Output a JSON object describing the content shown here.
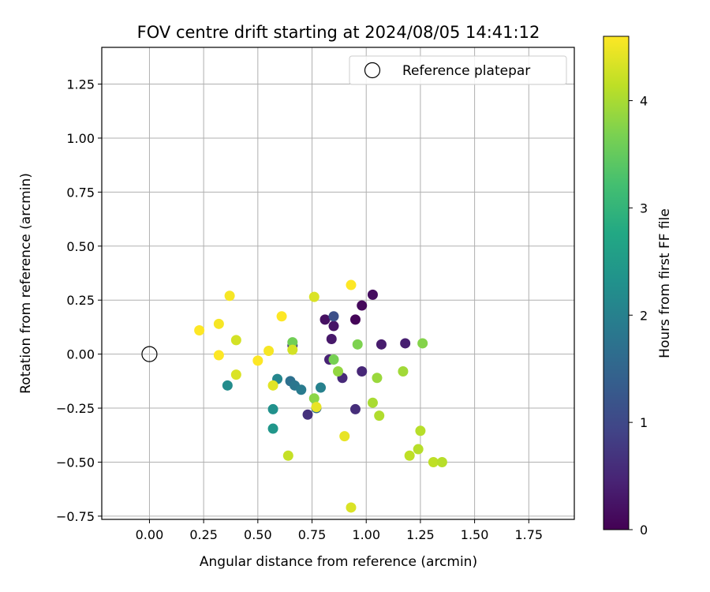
{
  "chart_data": {
    "type": "scatter",
    "title": "FOV centre drift starting at 2024/08/05 14:41:12",
    "xlabel": "Angular distance from reference (arcmin)",
    "ylabel": "Rotation from reference (arcmin)",
    "xlim": [
      -0.22,
      1.96
    ],
    "ylim": [
      -0.765,
      1.42
    ],
    "xticks": [
      0.0,
      0.25,
      0.5,
      0.75,
      1.0,
      1.25,
      1.5,
      1.75
    ],
    "xtick_labels": [
      "0.00",
      "0.25",
      "0.50",
      "0.75",
      "1.00",
      "1.25",
      "1.50",
      "1.75"
    ],
    "yticks": [
      -0.75,
      -0.5,
      -0.25,
      0.0,
      0.25,
      0.5,
      0.75,
      1.0,
      1.25
    ],
    "ytick_labels": [
      "−0.75",
      "−0.50",
      "−0.25",
      "0.00",
      "0.25",
      "0.50",
      "0.75",
      "1.00",
      "1.25"
    ],
    "grid": true,
    "legend": {
      "placement": "upper-right",
      "entries": [
        {
          "label": "Reference platepar",
          "marker": "open-circle"
        }
      ]
    },
    "reference_point": {
      "x": 0.0,
      "y": 0.0
    },
    "colorbar": {
      "label": "Hours from first FF file",
      "colormap": "viridis",
      "range": [
        0,
        4.6
      ],
      "ticks": [
        0,
        1,
        2,
        3,
        4
      ],
      "tick_labels": [
        "0",
        "1",
        "2",
        "3",
        "4"
      ]
    },
    "points": [
      {
        "x": 0.95,
        "y": 0.16,
        "hours": 0.05
      },
      {
        "x": 0.98,
        "y": 0.225,
        "hours": 0.1
      },
      {
        "x": 1.03,
        "y": 0.275,
        "hours": 0.15
      },
      {
        "x": 0.81,
        "y": 0.16,
        "hours": 0.2
      },
      {
        "x": 0.85,
        "y": 0.13,
        "hours": 0.25
      },
      {
        "x": 0.84,
        "y": 0.07,
        "hours": 0.3
      },
      {
        "x": 1.07,
        "y": 0.045,
        "hours": 0.35
      },
      {
        "x": 1.18,
        "y": 0.05,
        "hours": 0.4
      },
      {
        "x": 0.83,
        "y": -0.025,
        "hours": 0.45
      },
      {
        "x": 0.98,
        "y": -0.08,
        "hours": 0.5
      },
      {
        "x": 0.89,
        "y": -0.11,
        "hours": 0.55
      },
      {
        "x": 0.95,
        "y": -0.255,
        "hours": 0.6
      },
      {
        "x": 0.73,
        "y": -0.28,
        "hours": 0.65
      },
      {
        "x": 0.66,
        "y": 0.04,
        "hours": 0.7
      },
      {
        "x": 0.85,
        "y": 0.175,
        "hours": 1.1
      },
      {
        "x": 0.77,
        "y": -0.25,
        "hours": 1.6
      },
      {
        "x": 0.65,
        "y": -0.125,
        "hours": 1.7
      },
      {
        "x": 0.67,
        "y": -0.145,
        "hours": 1.8
      },
      {
        "x": 0.7,
        "y": -0.165,
        "hours": 1.9
      },
      {
        "x": 0.79,
        "y": -0.155,
        "hours": 2.0
      },
      {
        "x": 0.59,
        "y": -0.115,
        "hours": 2.1
      },
      {
        "x": 0.36,
        "y": -0.145,
        "hours": 2.2
      },
      {
        "x": 0.57,
        "y": -0.255,
        "hours": 2.3
      },
      {
        "x": 0.57,
        "y": -0.345,
        "hours": 2.4
      },
      {
        "x": 0.66,
        "y": 0.055,
        "hours": 3.6
      },
      {
        "x": 0.85,
        "y": -0.025,
        "hours": 3.65
      },
      {
        "x": 0.96,
        "y": 0.045,
        "hours": 3.7
      },
      {
        "x": 1.26,
        "y": 0.05,
        "hours": 3.75
      },
      {
        "x": 0.76,
        "y": -0.205,
        "hours": 3.8
      },
      {
        "x": 0.87,
        "y": -0.08,
        "hours": 3.85
      },
      {
        "x": 1.05,
        "y": -0.11,
        "hours": 3.9
      },
      {
        "x": 1.17,
        "y": -0.08,
        "hours": 3.95
      },
      {
        "x": 1.03,
        "y": -0.225,
        "hours": 4.0
      },
      {
        "x": 1.06,
        "y": -0.285,
        "hours": 4.05
      },
      {
        "x": 1.25,
        "y": -0.355,
        "hours": 4.1
      },
      {
        "x": 1.2,
        "y": -0.47,
        "hours": 4.15
      },
      {
        "x": 1.24,
        "y": -0.44,
        "hours": 4.1
      },
      {
        "x": 1.31,
        "y": -0.5,
        "hours": 4.15
      },
      {
        "x": 1.35,
        "y": -0.5,
        "hours": 4.1
      },
      {
        "x": 0.64,
        "y": -0.47,
        "hours": 4.2
      },
      {
        "x": 0.66,
        "y": 0.02,
        "hours": 4.3
      },
      {
        "x": 0.76,
        "y": 0.265,
        "hours": 4.35
      },
      {
        "x": 0.4,
        "y": 0.065,
        "hours": 4.3
      },
      {
        "x": 0.4,
        "y": -0.095,
        "hours": 4.35
      },
      {
        "x": 0.57,
        "y": -0.145,
        "hours": 4.4
      },
      {
        "x": 0.77,
        "y": -0.245,
        "hours": 4.45
      },
      {
        "x": 0.9,
        "y": -0.38,
        "hours": 4.45
      },
      {
        "x": 0.93,
        "y": -0.71,
        "hours": 4.35
      },
      {
        "x": 0.93,
        "y": 0.32,
        "hours": 4.6
      },
      {
        "x": 0.37,
        "y": 0.27,
        "hours": 4.55
      },
      {
        "x": 0.23,
        "y": 0.11,
        "hours": 4.6
      },
      {
        "x": 0.32,
        "y": 0.14,
        "hours": 4.55
      },
      {
        "x": 0.32,
        "y": -0.005,
        "hours": 4.6
      },
      {
        "x": 0.55,
        "y": 0.015,
        "hours": 4.55
      },
      {
        "x": 0.5,
        "y": -0.03,
        "hours": 4.6
      },
      {
        "x": 0.61,
        "y": 0.175,
        "hours": 4.6
      }
    ]
  }
}
